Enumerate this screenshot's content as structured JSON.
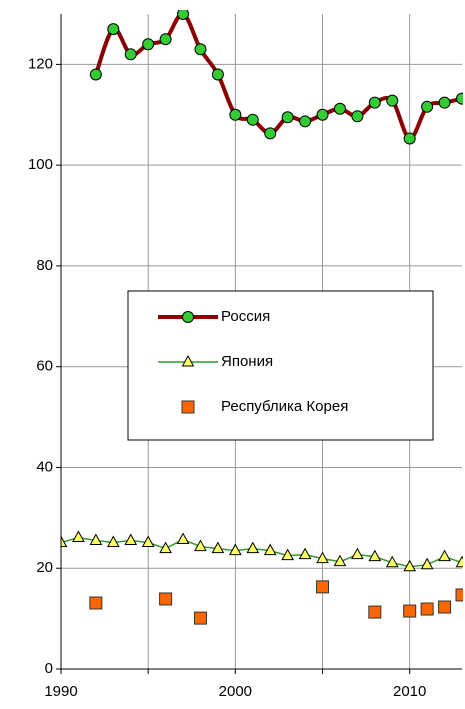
{
  "chart_data": {
    "type": "line",
    "x": [
      1990,
      1991,
      1992,
      1993,
      1994,
      1995,
      1996,
      1997,
      1998,
      1999,
      2000,
      2001,
      2002,
      2003,
      2004,
      2005,
      2006,
      2007,
      2008,
      2009,
      2010,
      2011,
      2012,
      2013
    ],
    "series": [
      {
        "name": "Россия",
        "color": "#8b0000",
        "marker": "circle",
        "marker_color": "#33cc33",
        "smooth": true,
        "values": [
          null,
          null,
          118,
          127,
          122,
          124,
          125,
          130,
          123,
          118,
          110,
          109,
          106.3,
          109.5,
          108.7,
          110,
          111.2,
          109.7,
          112.4,
          112.8,
          105.3,
          111.6,
          112.4,
          113.2
        ]
      },
      {
        "name": "Япония",
        "color": "#339933",
        "marker": "triangle",
        "marker_color": "#ffff66",
        "values": [
          25.1,
          26.1,
          25.5,
          25.1,
          25.5,
          25.1,
          23.9,
          25.7,
          24.3,
          23.9,
          23.5,
          23.9,
          23.5,
          22.5,
          22.7,
          21.9,
          21.3,
          22.7,
          22.3,
          21.1,
          20.3,
          20.7,
          22.3,
          21.1
        ]
      },
      {
        "name": "Республика Корея",
        "color": "#ff6600",
        "marker": "square",
        "line": false,
        "values": [
          null,
          null,
          13.1,
          null,
          null,
          null,
          13.9,
          null,
          10.1,
          null,
          null,
          null,
          null,
          null,
          null,
          16.3,
          null,
          null,
          11.3,
          null,
          11.5,
          11.9,
          12.3,
          14.7
        ]
      }
    ],
    "xlim": [
      1990,
      2013
    ],
    "xticks": [
      1990,
      2000,
      2010
    ],
    "x_minor_ticks": [
      1995,
      2005
    ],
    "ylim": [
      0,
      130
    ],
    "yticks": [
      0,
      20,
      40,
      60,
      80,
      100,
      120
    ],
    "grid": true
  }
}
